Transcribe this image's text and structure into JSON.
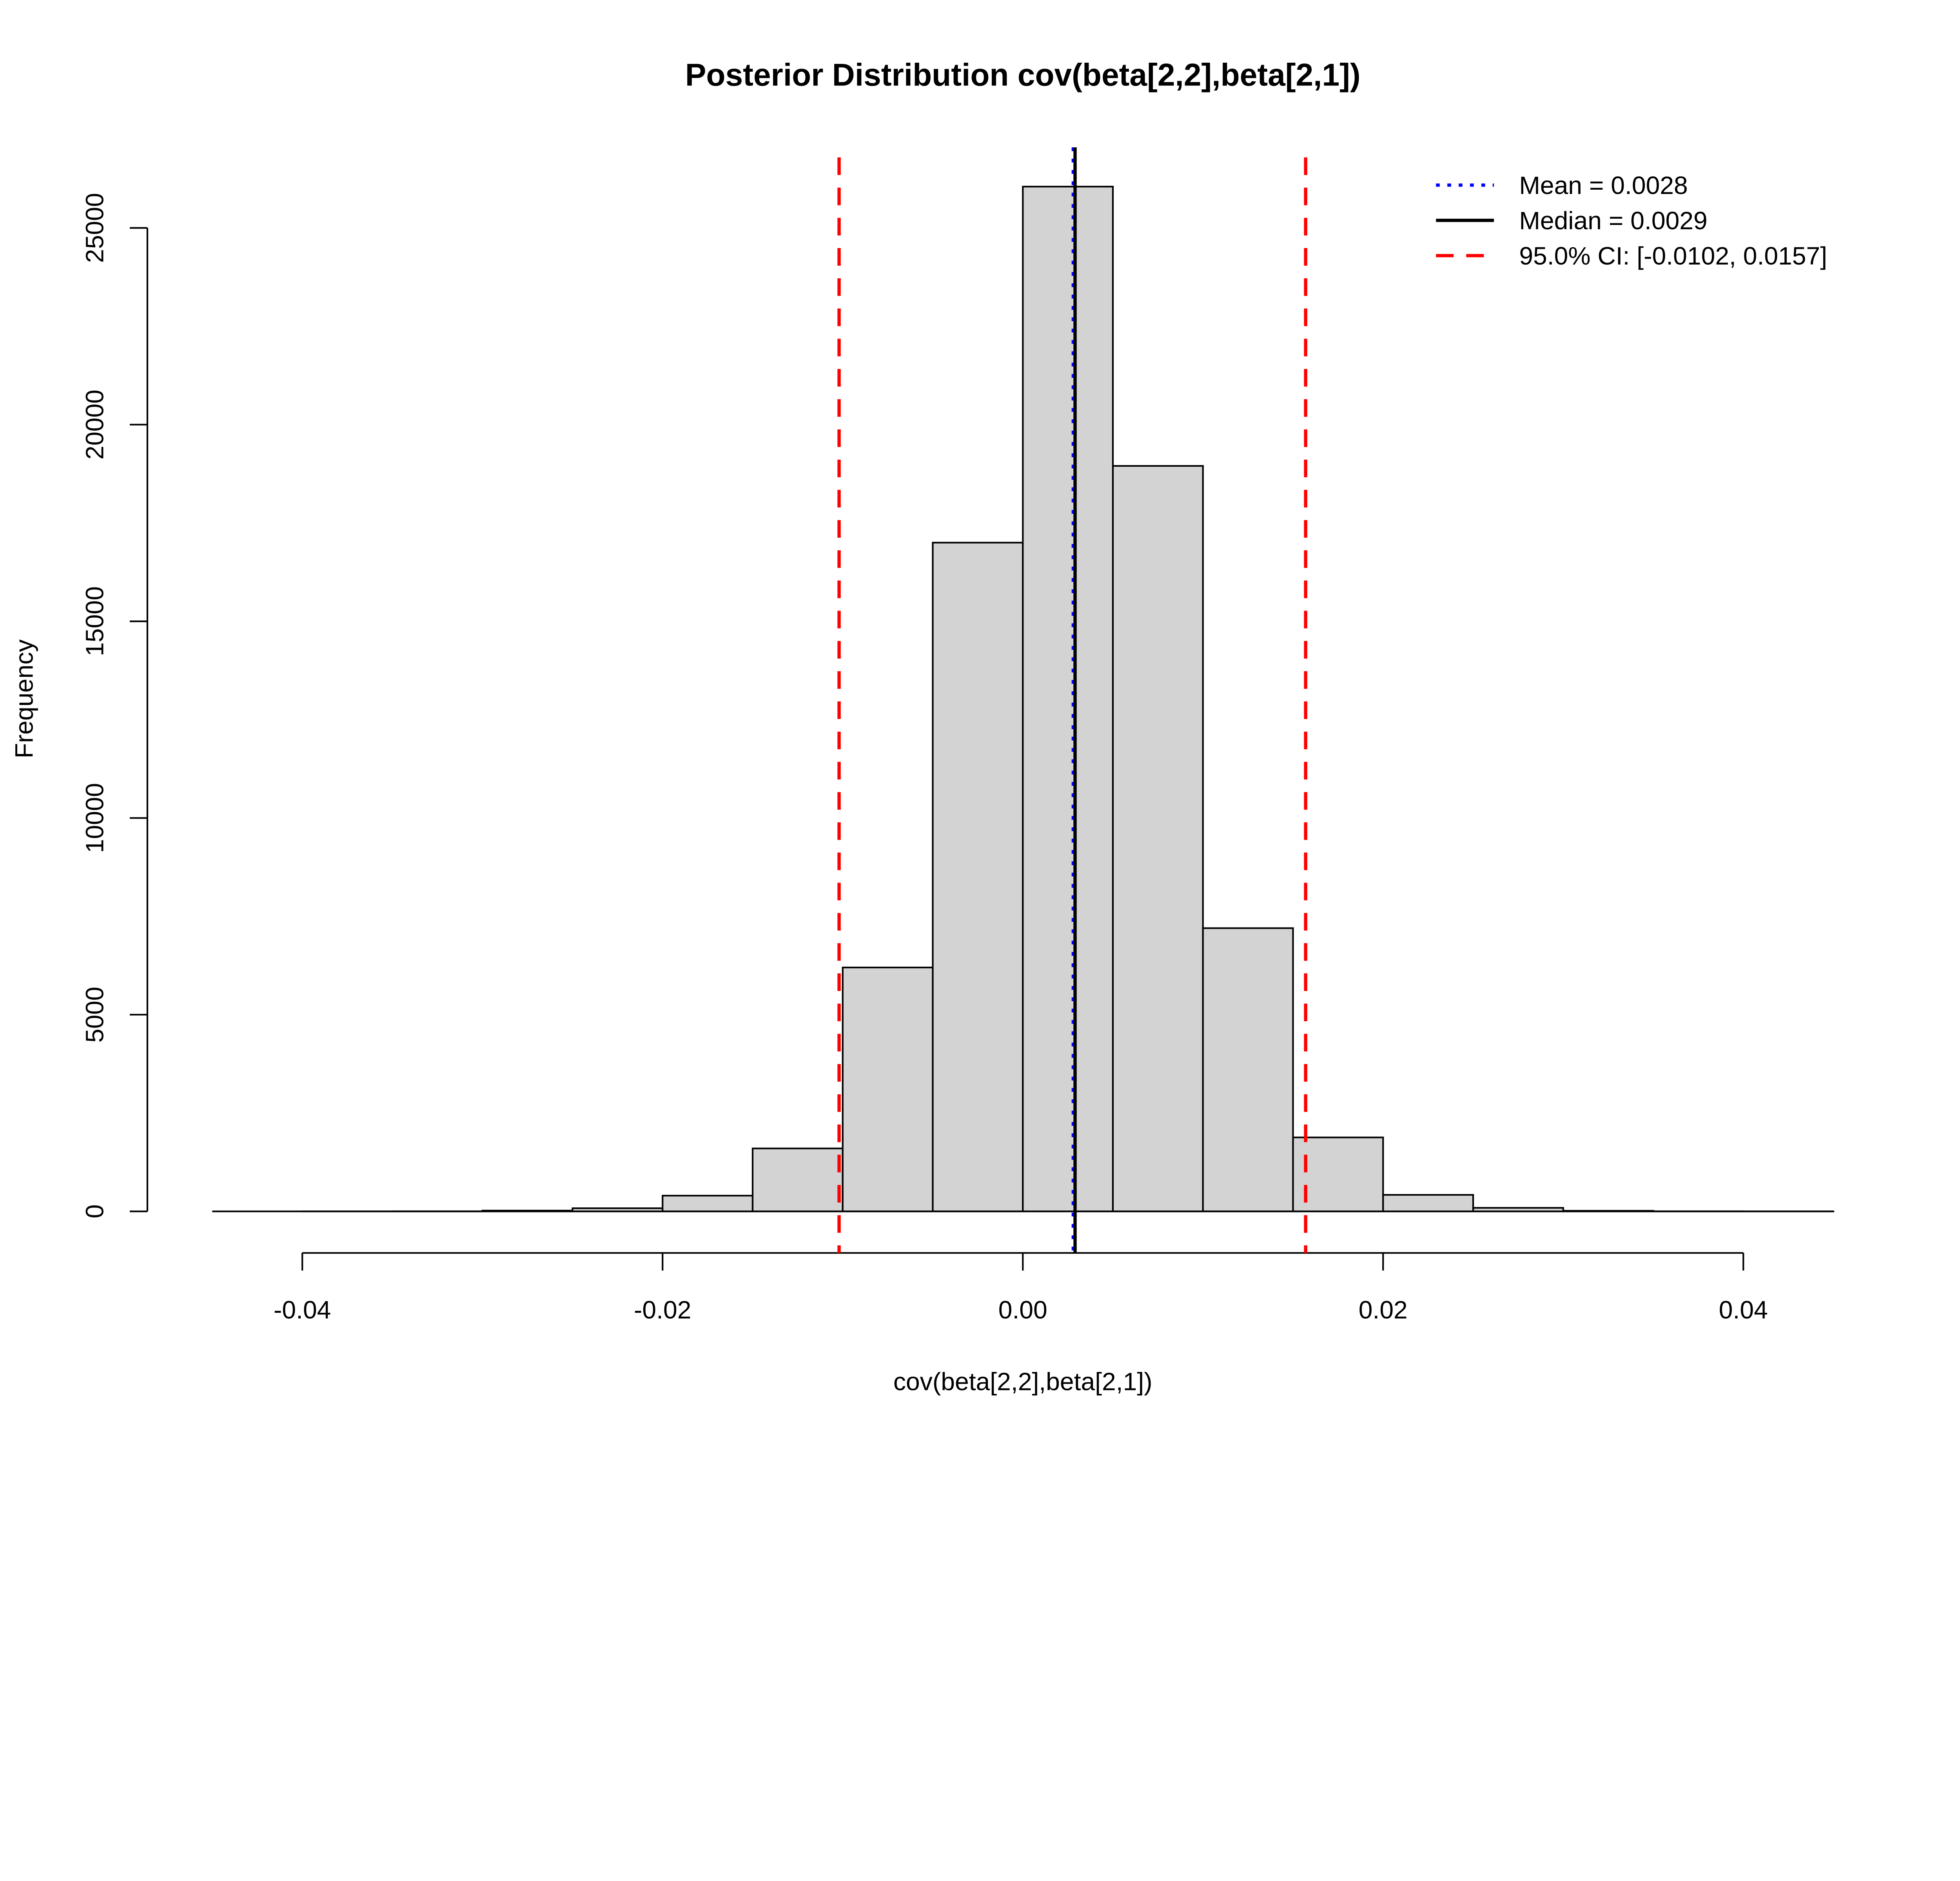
{
  "chart_data": {
    "type": "bar",
    "title": "Posterior Distribution cov(beta[2,2],beta[2,1])",
    "xlabel": "cov(beta[2,2],beta[2,1])",
    "ylabel": "Frequency",
    "bin_edges": [
      -0.045,
      -0.04,
      -0.035,
      -0.03,
      -0.025,
      -0.02,
      -0.015,
      -0.01,
      -0.005,
      0,
      0.005,
      0.01,
      0.015,
      0.02,
      0.025,
      0.03,
      0.035,
      0.04,
      0.045
    ],
    "values": [
      0,
      1,
      3,
      20,
      80,
      400,
      1600,
      6200,
      17000,
      26050,
      18950,
      7200,
      1880,
      420,
      90,
      15,
      3,
      1
    ],
    "xlim": [
      -0.045,
      0.045
    ],
    "ylim": [
      0,
      25000
    ],
    "xticks": [
      -0.04,
      -0.02,
      0,
      0.02,
      0.04
    ],
    "xtick_labels": [
      "-0.04",
      "-0.02",
      "0.00",
      "0.02",
      "0.04"
    ],
    "yticks": [
      0,
      5000,
      10000,
      15000,
      20000,
      25000
    ],
    "ytick_labels": [
      "0",
      "5000",
      "10000",
      "15000",
      "20000",
      "25000"
    ],
    "mean": 0.0028,
    "median": 0.0029,
    "ci": [
      -0.0102,
      0.0157
    ],
    "legend": {
      "placement": "top-right",
      "entries": [
        {
          "label": "Mean = 0.0028",
          "color": "#0000ff",
          "style": "dotted"
        },
        {
          "label": "Median = 0.0029",
          "color": "#000000",
          "style": "solid"
        },
        {
          "label": "95.0% CI: [-0.0102, 0.0157]",
          "color": "#ff0000",
          "style": "dashed"
        }
      ]
    },
    "colors": {
      "bar_fill": "#d3d3d3",
      "bar_stroke": "#000000"
    }
  }
}
